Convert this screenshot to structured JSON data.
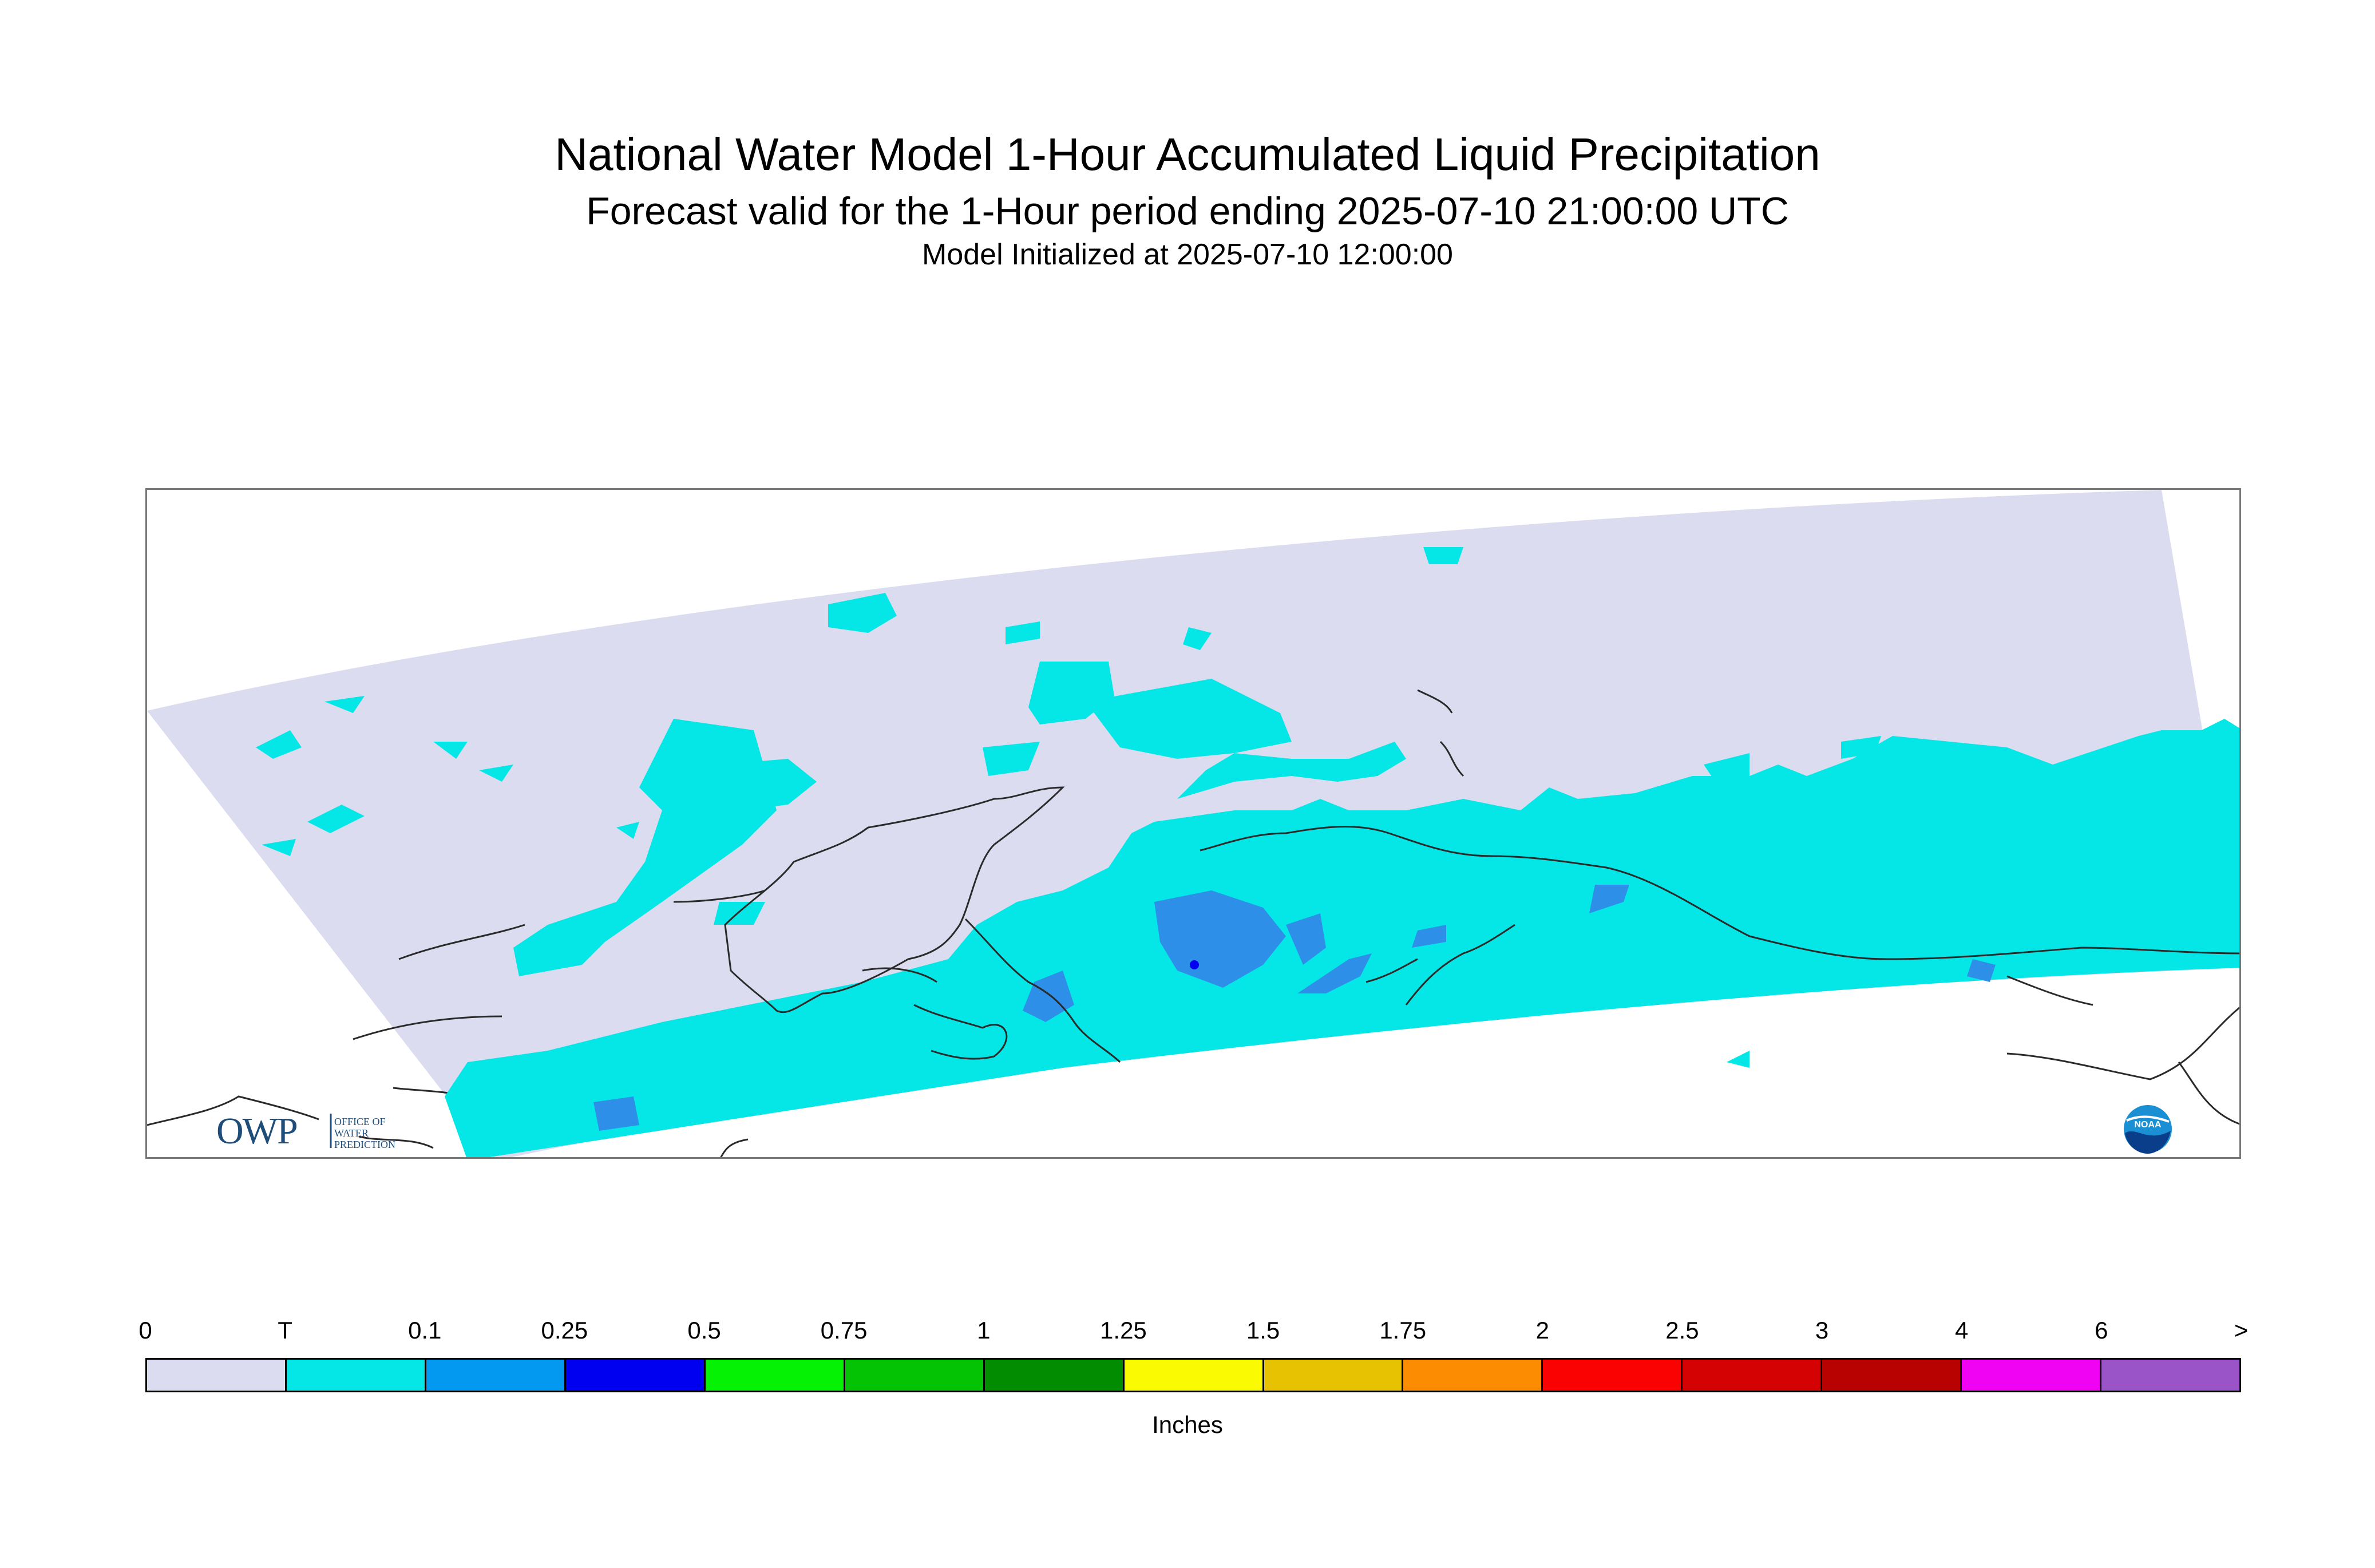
{
  "title": "National Water Model 1-Hour Accumulated Liquid Precipitation",
  "subtitle": "Forecast valid for the 1-Hour period ending 2025-07-10 21:00:00 UTC",
  "init": "Model Initialized at 2025-07-10 12:00:00",
  "logos": {
    "owp_text": "OWP",
    "owp_sub": [
      "OFFICE OF",
      "WATER",
      "PREDICTION"
    ],
    "noaa_text": "NOAA"
  },
  "legend": {
    "tick_labels": [
      "0",
      "T",
      "0.1",
      "0.25",
      "0.5",
      "0.75",
      "1",
      "1.25",
      "1.5",
      "1.75",
      "2",
      "2.5",
      "3",
      "4",
      "6",
      ">"
    ],
    "colors": [
      "#dcdcf0",
      "#05e6e6",
      "#0499f0",
      "#0000f0",
      "#05f205",
      "#04c204",
      "#028c02",
      "#fafa02",
      "#e6c203",
      "#fc8c02",
      "#fa0202",
      "#d40202",
      "#b80202",
      "#f002f2",
      "#9a54c8"
    ],
    "units": "Inches"
  },
  "colors": {
    "no_precip": "#dcdcf0",
    "trace": "#05e6e6",
    "light": "#2e8fe8",
    "coast": "#2a2a2a"
  }
}
